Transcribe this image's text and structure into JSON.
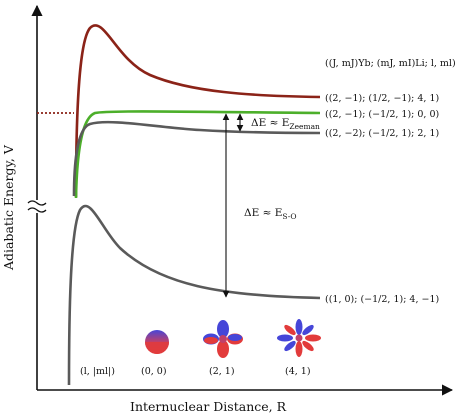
{
  "axes": {
    "xlabel": "Internuclear Distance, R",
    "ylabel": "Adiabatic Energy, V"
  },
  "legend_header": "((J, mJ)Yb; (mJ, mI)Li; l, ml)",
  "curves": [
    {
      "label": "((2, −1); (1/2, −1); 4, 1)",
      "color": "#8b2318"
    },
    {
      "label": "((2, −1); (−1/2, 1); 0, 0)",
      "color": "#4caf2a"
    },
    {
      "label": "((2, −2); (−1/2, 1); 2, 1)",
      "color": "#5a5a5a"
    },
    {
      "label": "((1, 0); (−1/2, 1); 4, −1)",
      "color": "#5a5a5a"
    }
  ],
  "annotations": {
    "zeeman": {
      "prefix": "ΔE ≈ E",
      "sub": "Zeeman"
    },
    "so": {
      "prefix": "ΔE ≈ E",
      "sub": "S-O"
    }
  },
  "partial_waves": {
    "header": "(l, |ml|)",
    "items": [
      {
        "label": "(0, 0)"
      },
      {
        "label": "(2, 1)"
      },
      {
        "label": "(4, 1)"
      }
    ]
  },
  "colors": {
    "lobe_top": "#e23b3b",
    "lobe_bottom": "#4646d8",
    "axis": "#111111",
    "dotted_marker": "#8b2318"
  }
}
